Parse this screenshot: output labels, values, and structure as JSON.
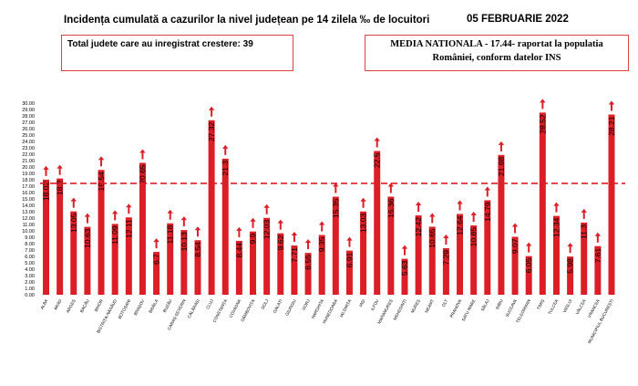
{
  "header": {
    "title": "Incidența cumulată a cazurilor la nivel județean pe 14 zilela ‰ de locuitori",
    "date": "05 FEBRUARIE 2022"
  },
  "info": {
    "increase_text": "Total judete care au inregistrat crestere: 39",
    "national_line1": "MEDIA NATIONALA - 17.44-  raportat la populatia",
    "national_line2": "României, conform datelor INS"
  },
  "colors": {
    "bar": "#dc1f26",
    "arrow": "#dc1f26",
    "reference_line": "#dc1f26",
    "box_border": "#e04040"
  },
  "chart_data": {
    "type": "bar",
    "categories": [
      "ALBA",
      "ARAD",
      "ARGEȘ",
      "BACĂU",
      "BIHOR",
      "BISTRIȚA-NĂSĂUD",
      "BOTOȘANI",
      "BRAȘOV",
      "BRĂILA",
      "BUZĂU",
      "CARAȘ-SEVERIN",
      "CĂLĂRAȘI",
      "CLUJ",
      "CONSTANȚA",
      "COVASNA",
      "DÂMBOVIȚA",
      "DOLJ",
      "GALAȚI",
      "GIURGIU",
      "GORJ",
      "HARGHITA",
      "HUNEDOARA",
      "IALOMIȚA",
      "IAȘI",
      "ILFOV",
      "MARAMUREȘ",
      "MEHEDINȚI",
      "MUREȘ",
      "NEAMȚ",
      "OLT",
      "PRAHOVA",
      "SATU MARE",
      "SĂLAJ",
      "SIBIU",
      "SUCEAVA",
      "TELEORMAN",
      "TIMIȘ",
      "TULCEA",
      "VASLUI",
      "VÂLCEA",
      "VRANCEA",
      "MUNICIPIUL BUCUREȘTI"
    ],
    "values": [
      18.02,
      18.2,
      13.05,
      10.63,
      19.54,
      11.09,
      12.11,
      20.65,
      6.7,
      11.18,
      10.13,
      8.54,
      27.32,
      21.3,
      8.44,
      9.9,
      12.03,
      9.62,
      7.71,
      6.55,
      9.35,
      15.35,
      6.91,
      13.03,
      22.5,
      15.36,
      5.63,
      12.42,
      10.65,
      7.29,
      12.64,
      10.85,
      14.79,
      21.88,
      9.07,
      6.05,
      28.52,
      12.34,
      5.98,
      11.3,
      7.61,
      28.21
    ],
    "value_labels": [
      "18.02",
      "18.2",
      "13.05",
      "10.63",
      "19.54",
      "11.09",
      "12.11",
      "20.65",
      "6.7",
      "11.18",
      "10.13",
      "8.54",
      "27.32",
      "21.3",
      "8.44",
      "9.9",
      "12.03",
      "9.62",
      "7.71",
      "6.55",
      "9.35",
      "15.35",
      "6.91",
      "13.03",
      "22.5",
      "15.36",
      "5.63",
      "12.42",
      "10.65",
      "7.29",
      "12.64",
      "10.85",
      "14.79",
      "21.88",
      "9.07",
      "6.05",
      "28.52",
      "12.34",
      "5.98",
      "11.3",
      "7.61",
      "28.21"
    ],
    "y_ticks": [
      "0.00",
      "1.00",
      "2.00",
      "3.00",
      "4.00",
      "5.00",
      "6.00",
      "7.00",
      "8.00",
      "9.00",
      "10.00",
      "11.00",
      "12.00",
      "13.00",
      "14.00",
      "15.00",
      "16.00",
      "17.00",
      "18.00",
      "19.00",
      "20.00",
      "21.00",
      "22.00",
      "23.00",
      "24.00",
      "25.00",
      "26.00",
      "27.00",
      "28.00",
      "29.00",
      "30.00"
    ],
    "ylim": [
      0,
      30
    ],
    "reference_value": 17.44,
    "grid": false,
    "trend": "increase-arrows-on-all-bars"
  }
}
